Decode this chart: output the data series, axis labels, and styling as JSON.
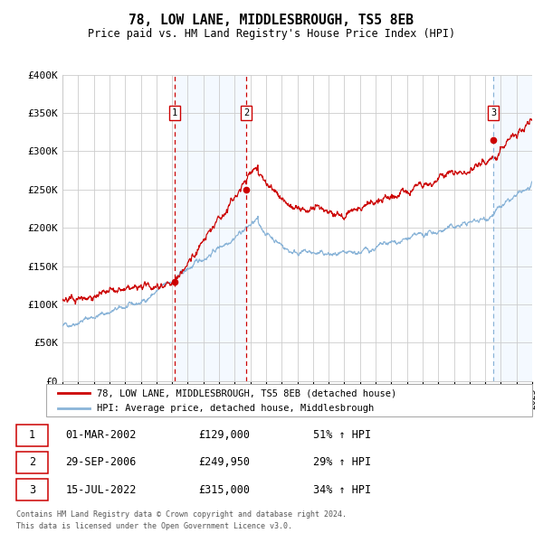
{
  "title": "78, LOW LANE, MIDDLESBROUGH, TS5 8EB",
  "subtitle": "Price paid vs. HM Land Registry's House Price Index (HPI)",
  "x_start_year": 1995,
  "x_end_year": 2025,
  "y_min": 0,
  "y_max": 400000,
  "y_ticks": [
    0,
    50000,
    100000,
    150000,
    200000,
    250000,
    300000,
    350000,
    400000
  ],
  "y_tick_labels": [
    "£0",
    "£50K",
    "£100K",
    "£150K",
    "£200K",
    "£250K",
    "£300K",
    "£350K",
    "£400K"
  ],
  "sale_color": "#cc0000",
  "hpi_color": "#8ab4d8",
  "shade_color": "#ddeeff",
  "grid_color": "#cccccc",
  "sales": [
    {
      "label": "1",
      "date_num": 2002.17,
      "price": 129000,
      "date_str": "01-MAR-2002",
      "pct": "51%"
    },
    {
      "label": "2",
      "date_num": 2006.75,
      "price": 249950,
      "date_str": "29-SEP-2006",
      "pct": "29%"
    },
    {
      "label": "3",
      "date_num": 2022.54,
      "price": 315000,
      "date_str": "15-JUL-2022",
      "pct": "34%"
    }
  ],
  "legend_line1": "78, LOW LANE, MIDDLESBROUGH, TS5 8EB (detached house)",
  "legend_line2": "HPI: Average price, detached house, Middlesbrough",
  "footnote1": "Contains HM Land Registry data © Crown copyright and database right 2024.",
  "footnote2": "This data is licensed under the Open Government Licence v3.0.",
  "table_rows": [
    [
      "1",
      "01-MAR-2002",
      "£129,000",
      "51% ↑ HPI"
    ],
    [
      "2",
      "29-SEP-2006",
      "£249,950",
      "29% ↑ HPI"
    ],
    [
      "3",
      "15-JUL-2022",
      "£315,000",
      "34% ↑ HPI"
    ]
  ]
}
